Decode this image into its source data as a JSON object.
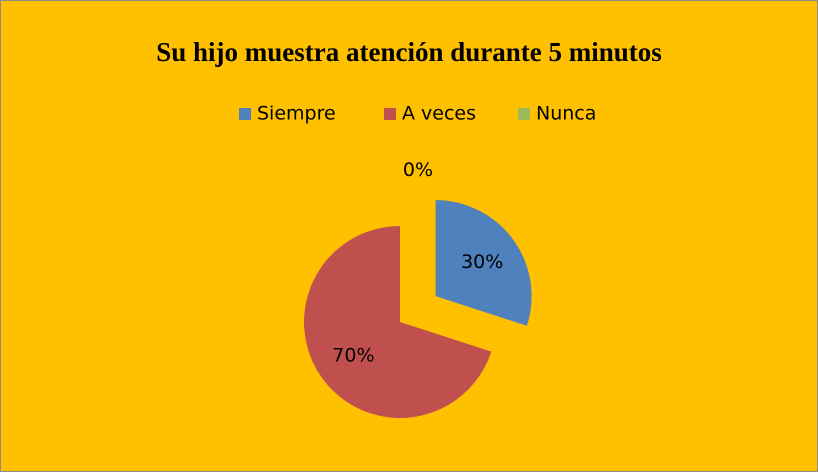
{
  "chart_data": {
    "type": "pie",
    "title": "Su hijo muestra atención durante 5 minutos",
    "categories": [
      "Siempre",
      "A veces",
      "Nunca"
    ],
    "values": [
      30,
      70,
      0
    ],
    "value_labels": [
      "30%",
      "70%",
      "0%"
    ],
    "colors": [
      "#4f81bd",
      "#c0504d",
      "#9bbb59"
    ],
    "background": "#ffc000",
    "legend": "top"
  }
}
